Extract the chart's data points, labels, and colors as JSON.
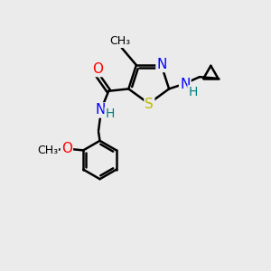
{
  "bg_color": "#ebebeb",
  "bond_color": "#000000",
  "bond_width": 1.8,
  "atom_colors": {
    "C": "#000000",
    "N": "#0000ff",
    "O": "#ff0000",
    "S": "#bbbb00",
    "H": "#008080"
  },
  "font_size": 10,
  "fig_size": [
    3.0,
    3.0
  ],
  "dpi": 100
}
